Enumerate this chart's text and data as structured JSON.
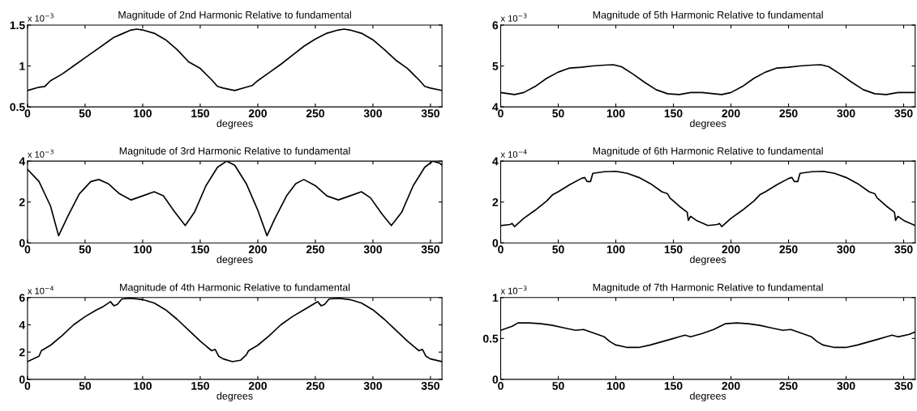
{
  "chart_data": [
    {
      "type": "line",
      "title": "Magnitude of 2nd Harmonic Relative to fundamental",
      "xlabel": "degrees",
      "annotations": [
        "x 10$^{−3}$"
      ],
      "xlim": [
        0,
        360
      ],
      "xticks": [
        0,
        50,
        100,
        150,
        200,
        250,
        300,
        350
      ],
      "ylim": [
        0.5,
        1.5
      ],
      "yticks": [
        0.5,
        1,
        1.5
      ],
      "series": [
        {
          "color": "#000000",
          "x": [
            0,
            10,
            15,
            20,
            30,
            40,
            50,
            60,
            70,
            75,
            80,
            90,
            95,
            100,
            110,
            120,
            130,
            140,
            150,
            160,
            165,
            170,
            180,
            190,
            195,
            200,
            210,
            220,
            230,
            240,
            250,
            260,
            270,
            275,
            280,
            290,
            300,
            310,
            320,
            330,
            340,
            345,
            350,
            360
          ],
          "values": [
            0.7,
            0.74,
            0.75,
            0.82,
            0.9,
            1.0,
            1.1,
            1.2,
            1.3,
            1.35,
            1.38,
            1.44,
            1.45,
            1.44,
            1.4,
            1.32,
            1.2,
            1.05,
            0.97,
            0.83,
            0.75,
            0.73,
            0.7,
            0.74,
            0.76,
            0.82,
            0.92,
            1.02,
            1.13,
            1.24,
            1.33,
            1.4,
            1.44,
            1.45,
            1.44,
            1.4,
            1.32,
            1.2,
            1.07,
            0.97,
            0.83,
            0.75,
            0.73,
            0.7
          ]
        }
      ]
    },
    {
      "type": "line",
      "title": "Magnitude of 5th Harmonic Relative to fundamental",
      "xlabel": "degrees",
      "annotations": [
        "x 10$^{−3}$"
      ],
      "xlim": [
        0,
        360
      ],
      "xticks": [
        0,
        50,
        100,
        150,
        200,
        250,
        300,
        350
      ],
      "ylim": [
        4,
        6
      ],
      "yticks": [
        4,
        5,
        6
      ],
      "series": [
        {
          "color": "#000000",
          "x": [
            0,
            12,
            20,
            30,
            40,
            50,
            60,
            70,
            80,
            90,
            98,
            105,
            115,
            125,
            135,
            145,
            155,
            165,
            175,
            185,
            192,
            200,
            210,
            220,
            230,
            240,
            250,
            260,
            270,
            278,
            285,
            295,
            305,
            315,
            325,
            335,
            345,
            360
          ],
          "values": [
            4.35,
            4.3,
            4.35,
            4.5,
            4.7,
            4.85,
            4.95,
            4.97,
            5.0,
            5.02,
            5.03,
            4.98,
            4.8,
            4.6,
            4.42,
            4.32,
            4.3,
            4.35,
            4.35,
            4.32,
            4.3,
            4.35,
            4.5,
            4.7,
            4.85,
            4.95,
            4.97,
            5.0,
            5.02,
            5.03,
            4.98,
            4.8,
            4.6,
            4.42,
            4.32,
            4.3,
            4.35,
            4.35
          ]
        }
      ]
    },
    {
      "type": "line",
      "title": "Magnitude of 3rd Harmonic Relative to fundamental",
      "xlabel": "degrees",
      "annotations": [
        "x 10$^{−3}$"
      ],
      "xlim": [
        0,
        360
      ],
      "xticks": [
        0,
        50,
        100,
        150,
        200,
        250,
        300,
        350
      ],
      "ylim": [
        0,
        4
      ],
      "yticks": [
        0,
        2,
        4
      ],
      "series": [
        {
          "color": "#000000",
          "x": [
            0,
            10,
            20,
            27,
            35,
            45,
            55,
            62,
            70,
            80,
            90,
            100,
            110,
            118,
            128,
            137,
            145,
            155,
            165,
            173,
            180,
            190,
            200,
            208,
            215,
            225,
            233,
            240,
            250,
            260,
            270,
            280,
            290,
            298,
            308,
            316,
            325,
            335,
            345,
            352,
            358,
            360
          ],
          "values": [
            3.6,
            3.0,
            1.8,
            0.35,
            1.3,
            2.4,
            3.0,
            3.1,
            2.9,
            2.4,
            2.1,
            2.3,
            2.5,
            2.3,
            1.5,
            0.85,
            1.5,
            2.8,
            3.7,
            4.0,
            3.8,
            2.9,
            1.6,
            0.35,
            1.2,
            2.3,
            2.9,
            3.1,
            2.8,
            2.3,
            2.1,
            2.3,
            2.5,
            2.2,
            1.4,
            0.85,
            1.5,
            2.8,
            3.7,
            4.0,
            3.9,
            3.8
          ]
        }
      ]
    },
    {
      "type": "line",
      "title": "Magnitude of 6th Harmonic Relative to fundamental",
      "xlabel": "degrees",
      "annotations": [
        "x 10$^{−4}$"
      ],
      "xlim": [
        0,
        360
      ],
      "xticks": [
        0,
        50,
        100,
        150,
        200,
        250,
        300,
        350
      ],
      "ylim": [
        0,
        4
      ],
      "yticks": [
        0,
        2,
        4
      ],
      "series": [
        {
          "color": "#000000",
          "x": [
            0,
            8,
            10,
            12,
            20,
            30,
            40,
            45,
            50,
            60,
            70,
            73,
            75,
            78,
            80,
            90,
            100,
            110,
            120,
            130,
            140,
            145,
            147,
            155,
            162,
            163,
            165,
            170,
            180,
            188,
            190,
            192,
            200,
            210,
            220,
            225,
            230,
            240,
            250,
            253,
            255,
            258,
            260,
            270,
            280,
            290,
            300,
            310,
            320,
            325,
            327,
            335,
            342,
            343,
            345,
            350,
            360
          ],
          "values": [
            0.85,
            0.9,
            0.95,
            0.8,
            1.2,
            1.6,
            2.05,
            2.35,
            2.5,
            2.85,
            3.15,
            3.2,
            3.0,
            3.0,
            3.4,
            3.48,
            3.5,
            3.4,
            3.2,
            2.9,
            2.5,
            2.4,
            2.2,
            1.8,
            1.5,
            1.1,
            1.3,
            1.1,
            0.85,
            0.9,
            0.95,
            0.8,
            1.2,
            1.6,
            2.05,
            2.35,
            2.5,
            2.85,
            3.15,
            3.2,
            3.0,
            3.0,
            3.4,
            3.48,
            3.5,
            3.4,
            3.2,
            2.9,
            2.5,
            2.4,
            2.2,
            1.8,
            1.5,
            1.1,
            1.3,
            1.1,
            0.85
          ]
        }
      ]
    },
    {
      "type": "line",
      "title": "Magnitude of 4th Harmonic Relative to fundamental",
      "xlabel": "degrees",
      "annotations": [
        "x 10$^{−4}$"
      ],
      "xlim": [
        0,
        360
      ],
      "xticks": [
        0,
        50,
        100,
        150,
        200,
        250,
        300,
        350
      ],
      "ylim": [
        0,
        6
      ],
      "yticks": [
        0,
        2,
        4,
        6
      ],
      "series": [
        {
          "color": "#000000",
          "x": [
            0,
            10,
            12,
            20,
            30,
            40,
            50,
            60,
            65,
            72,
            75,
            78,
            82,
            90,
            100,
            110,
            120,
            130,
            140,
            150,
            160,
            163,
            166,
            170,
            178,
            185,
            190,
            192,
            200,
            210,
            220,
            230,
            240,
            250,
            252,
            255,
            258,
            262,
            270,
            280,
            290,
            300,
            310,
            320,
            330,
            340,
            343,
            346,
            350,
            360
          ],
          "values": [
            1.3,
            1.7,
            2.1,
            2.5,
            3.2,
            4.0,
            4.6,
            5.1,
            5.3,
            5.7,
            5.4,
            5.5,
            5.9,
            5.95,
            5.85,
            5.6,
            5.1,
            4.4,
            3.6,
            2.8,
            2.1,
            2.2,
            1.7,
            1.5,
            1.3,
            1.4,
            1.8,
            2.1,
            2.5,
            3.2,
            4.0,
            4.6,
            5.1,
            5.6,
            5.7,
            5.4,
            5.5,
            5.9,
            5.95,
            5.85,
            5.6,
            5.1,
            4.4,
            3.6,
            2.8,
            2.1,
            2.2,
            1.7,
            1.5,
            1.3
          ]
        }
      ]
    },
    {
      "type": "line",
      "title": "Magnitude of 7th Harmonic Relative to fundamental",
      "xlabel": "degrees",
      "annotations": [
        "x 10$^{−3}$"
      ],
      "xlim": [
        0,
        360
      ],
      "xticks": [
        0,
        50,
        100,
        150,
        200,
        250,
        300,
        350
      ],
      "ylim": [
        0,
        1
      ],
      "yticks": [
        0,
        0.5,
        1
      ],
      "series": [
        {
          "color": "#000000",
          "x": [
            0,
            10,
            15,
            25,
            35,
            45,
            55,
            65,
            72,
            80,
            90,
            95,
            100,
            110,
            120,
            130,
            140,
            150,
            155,
            160,
            165,
            175,
            185,
            195,
            205,
            215,
            225,
            235,
            245,
            252,
            260,
            270,
            275,
            280,
            290,
            300,
            310,
            320,
            330,
            335,
            340,
            345,
            355,
            360
          ],
          "values": [
            0.6,
            0.65,
            0.69,
            0.69,
            0.68,
            0.66,
            0.63,
            0.6,
            0.61,
            0.57,
            0.52,
            0.46,
            0.42,
            0.39,
            0.39,
            0.42,
            0.46,
            0.5,
            0.52,
            0.54,
            0.52,
            0.56,
            0.61,
            0.68,
            0.69,
            0.68,
            0.66,
            0.63,
            0.6,
            0.61,
            0.57,
            0.52,
            0.46,
            0.42,
            0.39,
            0.39,
            0.42,
            0.46,
            0.5,
            0.52,
            0.54,
            0.52,
            0.55,
            0.58
          ]
        }
      ]
    }
  ]
}
